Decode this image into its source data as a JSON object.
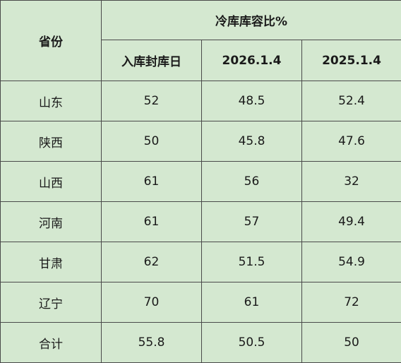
{
  "header": {
    "province": "省份",
    "group": "冷库库容比%",
    "columns": [
      "入库封库日",
      "2026.1.4",
      "2025.1.4"
    ]
  },
  "rows": [
    {
      "province": "山东",
      "values": [
        "52",
        "48.5",
        "52.4"
      ]
    },
    {
      "province": "陕西",
      "values": [
        "50",
        "45.8",
        "47.6"
      ]
    },
    {
      "province": "山西",
      "values": [
        "61",
        "56",
        "32"
      ]
    },
    {
      "province": "河南",
      "values": [
        "61",
        "57",
        "49.4"
      ]
    },
    {
      "province": "甘肃",
      "values": [
        "62",
        "51.5",
        "54.9"
      ]
    },
    {
      "province": "辽宁",
      "values": [
        "70",
        "61",
        "72"
      ]
    },
    {
      "province": "合计",
      "values": [
        "55.8",
        "50.5",
        "50"
      ]
    }
  ]
}
